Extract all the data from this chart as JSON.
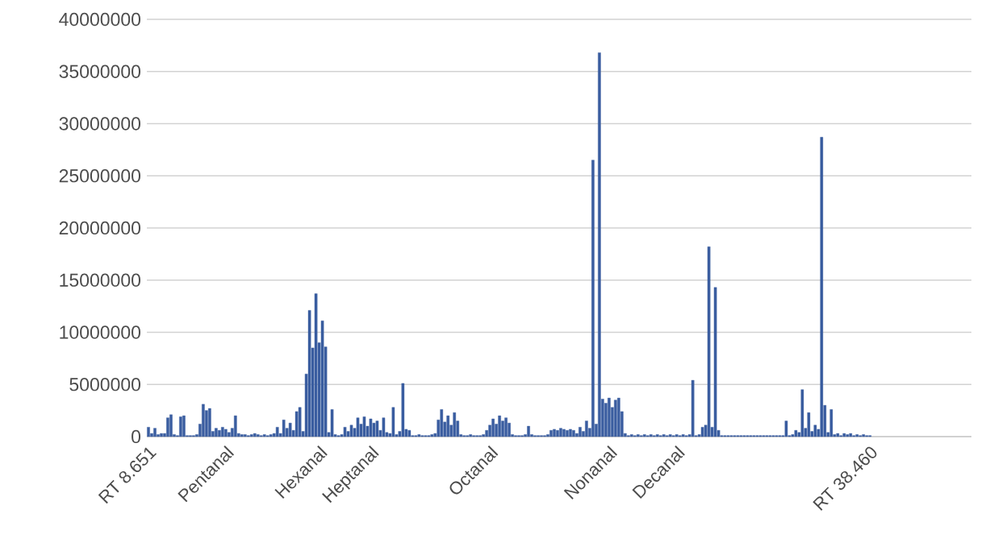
{
  "chart_data": {
    "type": "bar",
    "color": "#3a5da0",
    "grid": "y",
    "ylim": [
      0,
      40000000
    ],
    "yticks": [
      0,
      5000000,
      10000000,
      15000000,
      20000000,
      25000000,
      30000000,
      35000000,
      40000000
    ],
    "categories": [
      "RT 8.651",
      null,
      null,
      null,
      null,
      null,
      null,
      null,
      null,
      null,
      null,
      null,
      null,
      null,
      null,
      null,
      null,
      null,
      null,
      null,
      null,
      null,
      null,
      null,
      "Pentanal",
      null,
      null,
      null,
      null,
      null,
      null,
      null,
      null,
      null,
      null,
      null,
      null,
      null,
      null,
      null,
      null,
      null,
      null,
      null,
      null,
      null,
      null,
      null,
      null,
      null,
      null,
      null,
      null,
      "Hexanal",
      null,
      null,
      null,
      null,
      null,
      null,
      null,
      null,
      null,
      null,
      null,
      null,
      null,
      null,
      null,
      "Heptanal",
      null,
      null,
      null,
      null,
      null,
      null,
      null,
      null,
      null,
      null,
      null,
      null,
      null,
      null,
      null,
      null,
      null,
      null,
      null,
      null,
      null,
      null,
      null,
      null,
      null,
      null,
      null,
      null,
      null,
      null,
      null,
      null,
      null,
      null,
      null,
      null,
      "Octanal",
      null,
      null,
      null,
      null,
      null,
      null,
      null,
      null,
      null,
      null,
      null,
      null,
      null,
      null,
      null,
      null,
      null,
      null,
      null,
      null,
      null,
      null,
      null,
      null,
      null,
      null,
      null,
      null,
      null,
      null,
      null,
      null,
      null,
      null,
      null,
      null,
      "Nonanal",
      null,
      null,
      null,
      null,
      null,
      null,
      null,
      null,
      null,
      null,
      null,
      null,
      null,
      null,
      null,
      null,
      null,
      null,
      null,
      null,
      "Decanal",
      null,
      null,
      null,
      null,
      null,
      null,
      null,
      null,
      null,
      null,
      null,
      null,
      null,
      null,
      null,
      null,
      null,
      null,
      null,
      null,
      null,
      null,
      null,
      null,
      null,
      null,
      null,
      null,
      null,
      null,
      null,
      null,
      null,
      null,
      null,
      null,
      null,
      null,
      null,
      null,
      null,
      null,
      null,
      null,
      null,
      null,
      null,
      null,
      null,
      null,
      null,
      null,
      null,
      null,
      null,
      null,
      null,
      null,
      null,
      "RT 38.460",
      null,
      null,
      null,
      null,
      null,
      null,
      null,
      null,
      null,
      null,
      null,
      null,
      null,
      null,
      null,
      null,
      null,
      null,
      null,
      null,
      null,
      null,
      null,
      null,
      null,
      null,
      null,
      null,
      null,
      null,
      null
    ],
    "values": [
      900000,
      300000,
      800000,
      200000,
      300000,
      300000,
      1800000,
      2100000,
      200000,
      100000,
      1900000,
      2000000,
      100000,
      100000,
      100000,
      200000,
      1200000,
      3100000,
      2500000,
      2700000,
      500000,
      800000,
      600000,
      900000,
      700000,
      400000,
      800000,
      2000000,
      300000,
      200000,
      200000,
      100000,
      200000,
      300000,
      200000,
      100000,
      200000,
      100000,
      200000,
      300000,
      900000,
      300000,
      1600000,
      800000,
      1300000,
      600000,
      2400000,
      2800000,
      500000,
      6000000,
      12100000,
      8500000,
      13700000,
      9000000,
      11100000,
      8600000,
      400000,
      2600000,
      200000,
      100000,
      200000,
      900000,
      500000,
      1100000,
      800000,
      1800000,
      1200000,
      1900000,
      1000000,
      1700000,
      1300000,
      1500000,
      600000,
      1800000,
      400000,
      300000,
      2800000,
      200000,
      500000,
      5100000,
      700000,
      600000,
      100000,
      100000,
      200000,
      100000,
      100000,
      100000,
      200000,
      300000,
      1600000,
      2600000,
      1400000,
      2000000,
      1100000,
      2300000,
      1500000,
      200000,
      100000,
      100000,
      200000,
      100000,
      100000,
      100000,
      200000,
      600000,
      1100000,
      1700000,
      1200000,
      2000000,
      1500000,
      1800000,
      1300000,
      200000,
      100000,
      100000,
      100000,
      200000,
      1000000,
      200000,
      100000,
      100000,
      100000,
      100000,
      200000,
      600000,
      700000,
      600000,
      800000,
      700000,
      600000,
      700000,
      600000,
      300000,
      900000,
      500000,
      1500000,
      800000,
      26500000,
      1200000,
      36800000,
      3600000,
      3200000,
      3700000,
      2800000,
      3500000,
      3700000,
      2400000,
      300000,
      100000,
      200000,
      100000,
      200000,
      100000,
      200000,
      100000,
      200000,
      100000,
      200000,
      100000,
      200000,
      100000,
      200000,
      100000,
      200000,
      100000,
      200000,
      100000,
      200000,
      5400000,
      100000,
      200000,
      900000,
      1100000,
      18200000,
      900000,
      14300000,
      600000,
      100000,
      100000,
      100000,
      100000,
      100000,
      100000,
      100000,
      100000,
      100000,
      100000,
      100000,
      100000,
      100000,
      100000,
      100000,
      100000,
      100000,
      100000,
      100000,
      100000,
      1500000,
      100000,
      200000,
      600000,
      400000,
      4500000,
      800000,
      2300000,
      500000,
      1100000,
      700000,
      28700000,
      3000000,
      400000,
      2600000,
      200000,
      300000,
      100000,
      300000,
      200000,
      300000,
      100000,
      200000,
      100000,
      200000,
      100000,
      100000,
      null,
      null,
      null,
      null,
      null,
      null,
      null,
      null,
      null,
      null,
      null,
      null,
      null,
      null,
      null,
      null,
      null,
      null,
      null,
      null,
      null,
      null,
      null,
      null,
      null,
      null,
      null,
      null,
      null,
      null,
      null
    ]
  }
}
